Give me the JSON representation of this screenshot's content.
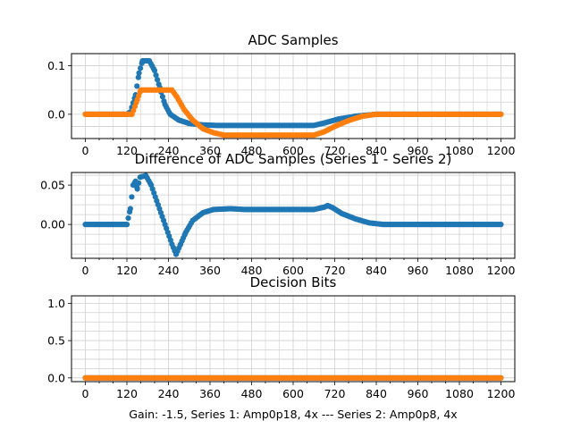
{
  "figure": {
    "xlabel": "Gain: -1.5, Series 1: Amp0p18, 4x --- Series 2: Amp0p8, 4x"
  },
  "chart_data": [
    {
      "type": "scatter",
      "title": "ADC Samples",
      "xlim": [
        -40,
        1240
      ],
      "ylim": [
        -0.05,
        0.125
      ],
      "xticks": [
        0,
        120,
        240,
        360,
        480,
        600,
        720,
        840,
        960,
        1080,
        1200
      ],
      "yticks": [
        0.0,
        0.1
      ],
      "ytick_labels": [
        "0.0",
        "0.1"
      ],
      "grid": true,
      "series": [
        {
          "color": "#1f77b4",
          "points": [
            [
              0,
              0
            ],
            [
              120,
              0
            ],
            [
              130,
              0.005
            ],
            [
              145,
              0.04
            ],
            [
              155,
              0.085
            ],
            [
              165,
              0.11
            ],
            [
              185,
              0.11
            ],
            [
              200,
              0.09
            ],
            [
              215,
              0.055
            ],
            [
              230,
              0.02
            ],
            [
              245,
              0.0
            ],
            [
              270,
              -0.012
            ],
            [
              300,
              -0.019
            ],
            [
              340,
              -0.022
            ],
            [
              380,
              -0.023
            ],
            [
              660,
              -0.023
            ],
            [
              690,
              -0.018
            ],
            [
              730,
              -0.01
            ],
            [
              780,
              -0.004
            ],
            [
              840,
              0
            ],
            [
              1200,
              0
            ]
          ]
        },
        {
          "color": "#ff7f0e",
          "points": [
            [
              0,
              0
            ],
            [
              135,
              0
            ],
            [
              150,
              0.03
            ],
            [
              160,
              0.05
            ],
            [
              250,
              0.05
            ],
            [
              265,
              0.035
            ],
            [
              285,
              0.01
            ],
            [
              310,
              -0.012
            ],
            [
              340,
              -0.03
            ],
            [
              370,
              -0.038
            ],
            [
              400,
              -0.043
            ],
            [
              660,
              -0.043
            ],
            [
              690,
              -0.036
            ],
            [
              720,
              -0.025
            ],
            [
              760,
              -0.013
            ],
            [
              800,
              -0.004
            ],
            [
              840,
              0
            ],
            [
              1200,
              0
            ]
          ]
        }
      ]
    },
    {
      "type": "scatter",
      "title": "Difference of ADC Samples (Series 1 - Series 2)",
      "xlim": [
        -40,
        1240
      ],
      "ylim": [
        -0.043,
        0.066
      ],
      "xticks": [
        0,
        120,
        240,
        360,
        480,
        600,
        720,
        840,
        960,
        1080,
        1200
      ],
      "yticks": [
        0.0,
        0.05
      ],
      "ytick_labels": [
        "0.00",
        "0.05"
      ],
      "grid": true,
      "series": [
        {
          "color": "#1f77b4",
          "points": [
            [
              0,
              0
            ],
            [
              120,
              0
            ],
            [
              130,
              0.02
            ],
            [
              138,
              0.05
            ],
            [
              145,
              0.055
            ],
            [
              150,
              0.045
            ],
            [
              158,
              0.06
            ],
            [
              175,
              0.062
            ],
            [
              190,
              0.05
            ],
            [
              210,
              0.025
            ],
            [
              230,
              0.0
            ],
            [
              250,
              -0.025
            ],
            [
              262,
              -0.038
            ],
            [
              275,
              -0.025
            ],
            [
              290,
              -0.01
            ],
            [
              310,
              0.005
            ],
            [
              340,
              0.015
            ],
            [
              370,
              0.019
            ],
            [
              420,
              0.02
            ],
            [
              460,
              0.019
            ],
            [
              660,
              0.019
            ],
            [
              690,
              0.022
            ],
            [
              700,
              0.024
            ],
            [
              715,
              0.021
            ],
            [
              740,
              0.014
            ],
            [
              780,
              0.007
            ],
            [
              820,
              0.002
            ],
            [
              860,
              0
            ],
            [
              1200,
              0
            ]
          ]
        }
      ]
    },
    {
      "type": "scatter",
      "title": "Decision Bits",
      "xlim": [
        -40,
        1240
      ],
      "ylim": [
        -0.05,
        1.1
      ],
      "xticks": [
        0,
        120,
        240,
        360,
        480,
        600,
        720,
        840,
        960,
        1080,
        1200
      ],
      "yticks": [
        0.0,
        0.5,
        1.0
      ],
      "ytick_labels": [
        "0.0",
        "0.5",
        "1.0"
      ],
      "grid": true,
      "series": [
        {
          "color": "#1f77b4",
          "points": [
            [
              0,
              0
            ],
            [
              1200,
              0
            ]
          ]
        },
        {
          "color": "#ff7f0e",
          "points": [
            [
              0,
              0
            ],
            [
              1200,
              0
            ]
          ]
        }
      ]
    }
  ]
}
